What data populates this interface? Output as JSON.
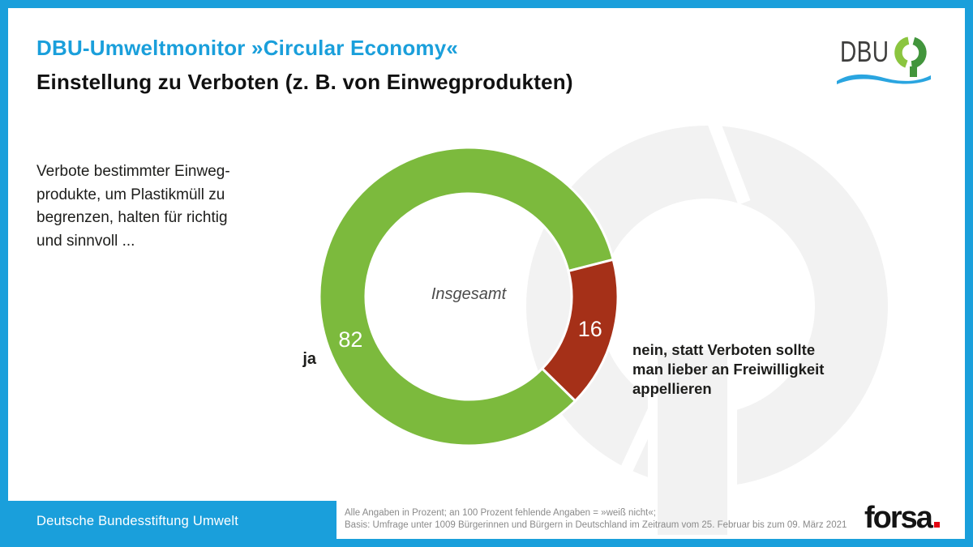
{
  "header": {
    "title": "DBU-Umweltmonitor »Circular Economy«",
    "subtitle": "Einstellung zu Verboten (z. B. von Einwegprodukten)"
  },
  "logo": {
    "text": "DBU"
  },
  "question": {
    "lines": [
      "Verbote bestimmter Einweg-",
      "produkte, um Plastikmüll zu",
      "begrenzen, halten für richtig",
      "und sinnvoll ..."
    ]
  },
  "chart_data": {
    "type": "pie",
    "subtype": "donut",
    "center_label": "Insgesamt",
    "categories": [
      "ja",
      "nein, statt Verboten sollte man lieber an Freiwilligkeit appellieren"
    ],
    "values": [
      82,
      16
    ],
    "value_labels": [
      "82",
      "16"
    ],
    "unit": "Prozent",
    "colors": [
      "#7cba3d",
      "#a53018"
    ],
    "legend_position": "none",
    "note": "an 100 Prozent fehlende Angaben = »weiß nicht«"
  },
  "chart_labels": {
    "ja": "ja",
    "nein_lines": [
      "nein, statt Verboten sollte",
      "man lieber an Freiwilligkeit",
      "appellieren"
    ]
  },
  "footer": {
    "org": "Deutsche Bundesstiftung Umwelt",
    "note_line1": "Alle Angaben in Prozent; an 100 Prozent fehlende Angaben = »weiß nicht«;",
    "note_line2": "Basis: Umfrage unter 1009 Bürgerinnen und Bürgern in Deutschland im Zeitraum vom 25. Februar bis zum 09. März 2021",
    "forsa_text": "forsa"
  },
  "colors": {
    "frame_blue": "#1a9fdb",
    "title_blue": "#1a9fdb",
    "donut_green": "#7cba3d",
    "donut_red": "#a53018",
    "watermark_gray": "#f2f2f2",
    "forsa_red": "#e30613",
    "dbu_light_green": "#8bc53f",
    "dbu_dark_green": "#42953c"
  }
}
